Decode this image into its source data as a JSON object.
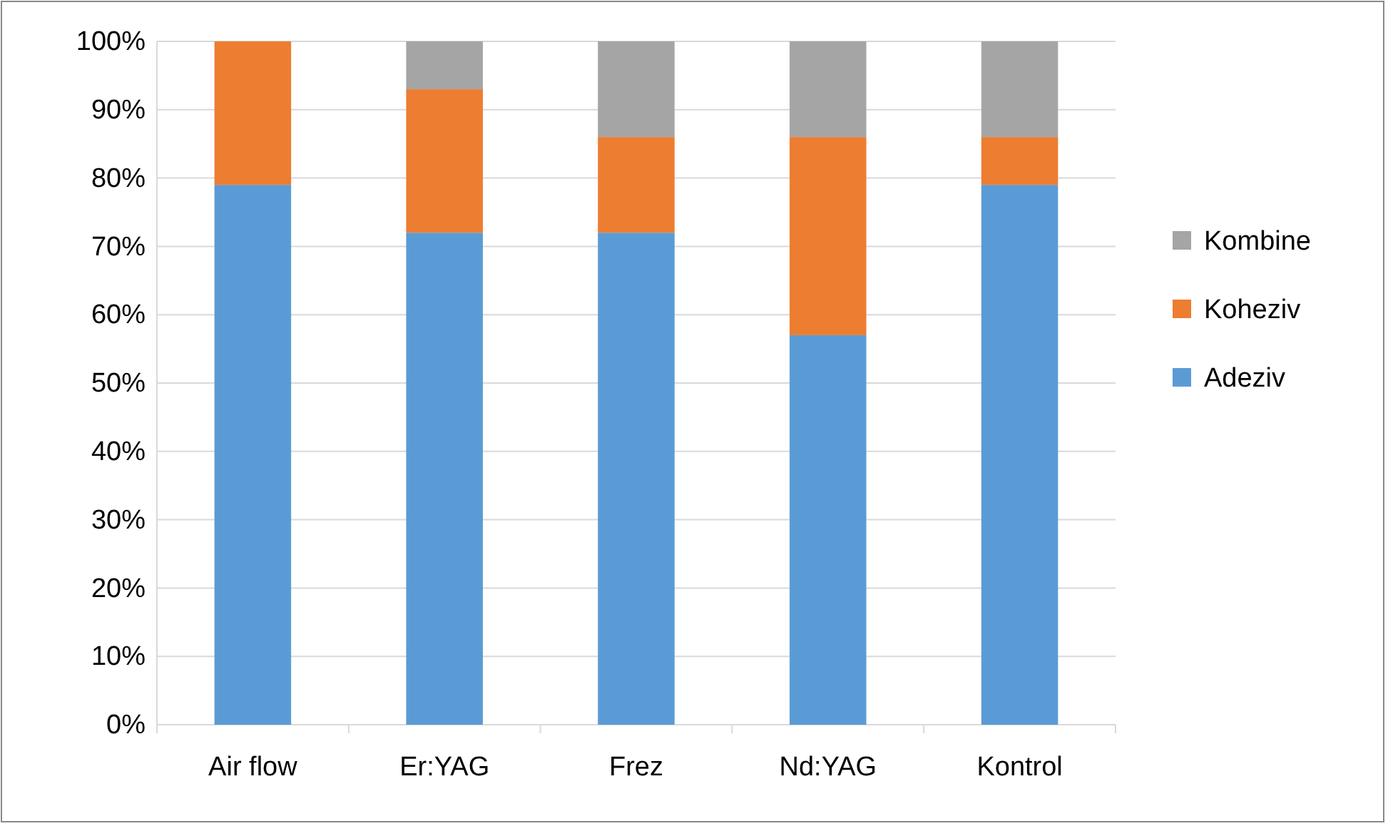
{
  "chart_data": {
    "type": "bar",
    "stacked": true,
    "categories": [
      "Air flow",
      "Er:YAG",
      "Frez",
      "Nd:YAG",
      "Kontrol"
    ],
    "series": [
      {
        "name": "Adeziv",
        "color": "#5b9bd5",
        "values": [
          79,
          72,
          72,
          57,
          79
        ]
      },
      {
        "name": "Koheziv",
        "color": "#ed7d31",
        "values": [
          21,
          21,
          14,
          29,
          7
        ]
      },
      {
        "name": "Kombine",
        "color": "#a5a5a5",
        "values": [
          0,
          7,
          14,
          14,
          14
        ]
      }
    ],
    "ylim": [
      0,
      100
    ],
    "yticks": [
      {
        "value": 0,
        "label": "0%"
      },
      {
        "value": 10,
        "label": "10%"
      },
      {
        "value": 20,
        "label": "20%"
      },
      {
        "value": 30,
        "label": "30%"
      },
      {
        "value": 40,
        "label": "40%"
      },
      {
        "value": 50,
        "label": "50%"
      },
      {
        "value": 60,
        "label": "60%"
      },
      {
        "value": 70,
        "label": "70%"
      },
      {
        "value": 80,
        "label": "80%"
      },
      {
        "value": 90,
        "label": "90%"
      },
      {
        "value": 100,
        "label": "100%"
      }
    ],
    "grid": "y",
    "legend": "right"
  }
}
